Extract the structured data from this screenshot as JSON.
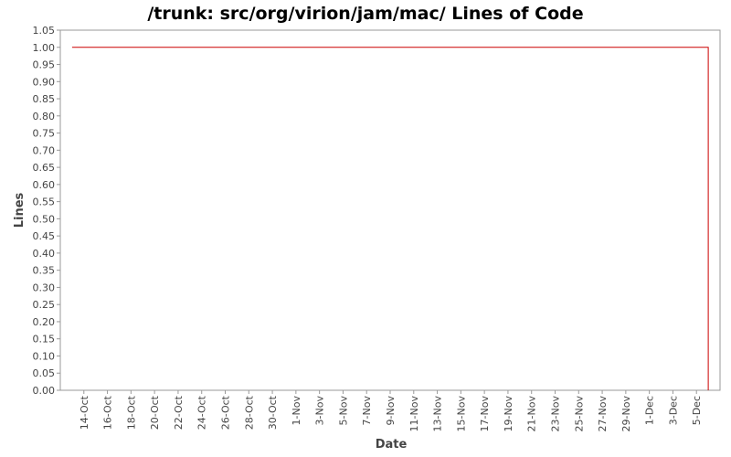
{
  "chart_data": {
    "type": "line",
    "title": "/trunk: src/org/virion/jam/mac/ Lines of Code",
    "x_label": "Date",
    "y_label": "Lines",
    "x": [
      "13-Oct",
      "6-Dec",
      "6-Dec"
    ],
    "series": [
      {
        "name": "Lines",
        "color": "#cc0000",
        "values": [
          1,
          1,
          0
        ]
      }
    ],
    "xlim": [
      "12-Oct",
      "7-Dec"
    ],
    "xticks": [
      "14-Oct",
      "16-Oct",
      "18-Oct",
      "20-Oct",
      "22-Oct",
      "24-Oct",
      "26-Oct",
      "28-Oct",
      "30-Oct",
      "1-Nov",
      "3-Nov",
      "5-Nov",
      "7-Nov",
      "9-Nov",
      "11-Nov",
      "13-Nov",
      "15-Nov",
      "17-Nov",
      "19-Nov",
      "21-Nov",
      "23-Nov",
      "25-Nov",
      "27-Nov",
      "29-Nov",
      "1-Dec",
      "3-Dec",
      "5-Dec"
    ],
    "ylim": [
      0,
      1.05
    ],
    "yticks": [
      {
        "value": 0,
        "label": "0.00"
      },
      {
        "value": 0.05,
        "label": "0.05"
      },
      {
        "value": 0.1,
        "label": "0.10"
      },
      {
        "value": 0.15,
        "label": "0.15"
      },
      {
        "value": 0.2,
        "label": "0.20"
      },
      {
        "value": 0.25,
        "label": "0.25"
      },
      {
        "value": 0.3,
        "label": "0.30"
      },
      {
        "value": 0.35,
        "label": "0.35"
      },
      {
        "value": 0.4,
        "label": "0.40"
      },
      {
        "value": 0.45,
        "label": "0.45"
      },
      {
        "value": 0.5,
        "label": "0.50"
      },
      {
        "value": 0.55,
        "label": "0.55"
      },
      {
        "value": 0.6,
        "label": "0.60"
      },
      {
        "value": 0.65,
        "label": "0.65"
      },
      {
        "value": 0.7,
        "label": "0.70"
      },
      {
        "value": 0.75,
        "label": "0.75"
      },
      {
        "value": 0.8,
        "label": "0.80"
      },
      {
        "value": 0.85,
        "label": "0.85"
      },
      {
        "value": 0.9,
        "label": "0.90"
      },
      {
        "value": 0.95,
        "label": "0.95"
      },
      {
        "value": 1,
        "label": "1.00"
      },
      {
        "value": 1.05,
        "label": "1.05"
      }
    ],
    "grid": false
  }
}
